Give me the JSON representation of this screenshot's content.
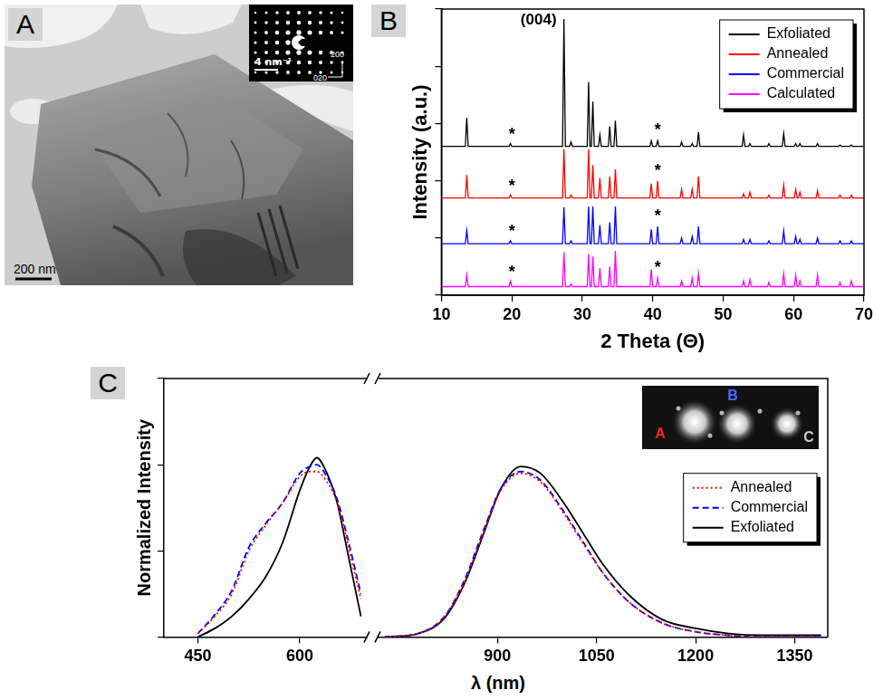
{
  "image_panel": {
    "panel": "A",
    "scale_bar": "200 nm",
    "inset": {
      "scale_bar": "4 nm⁻¹",
      "axis_labels": [
        "200",
        "020"
      ]
    }
  },
  "chart_data": [
    {
      "type": "line",
      "panel": "B",
      "xlabel": "2 Theta (Θ)",
      "ylabel": "Intensity (a.u.)",
      "xlim": [
        10,
        70
      ],
      "xticks": [
        10,
        20,
        30,
        40,
        50,
        60,
        70
      ],
      "ylim": [
        0,
        100
      ],
      "yticks": [
        0,
        20,
        40,
        60,
        80,
        100
      ],
      "tick_labels": "x",
      "grid": false,
      "legend": "upper right",
      "x": [
        10,
        13.4,
        13.6,
        13.8,
        19.6,
        19.8,
        20,
        27.2,
        27.4,
        27.6,
        28.2,
        28.4,
        28.6,
        30.7,
        30.9,
        31.1,
        31.3,
        31.5,
        31.7,
        32.3,
        32.5,
        32.7,
        33.7,
        33.9,
        34.1,
        34.5,
        34.7,
        34.9,
        39.6,
        39.8,
        40,
        40.5,
        40.7,
        40.9,
        43.9,
        44.1,
        44.3,
        45.4,
        45.6,
        45.8,
        46.3,
        46.5,
        46.7,
        52.7,
        52.9,
        53.1,
        53.6,
        53.8,
        54,
        56.3,
        56.5,
        56.7,
        58.4,
        58.6,
        58.8,
        60.1,
        60.3,
        60.5,
        60.7,
        60.9,
        61.1,
        63.2,
        63.4,
        63.6,
        66.4,
        66.6,
        66.8,
        68,
        68.2,
        68.4,
        70
      ],
      "series": [
        {
          "name": "Exfoliated",
          "color": "#000000",
          "values": [
            52,
            52,
            62,
            52,
            52,
            53,
            52,
            52,
            96.5,
            52,
            52,
            53.5,
            52,
            52,
            74.5,
            52,
            52,
            67.6,
            52,
            52,
            56,
            52,
            52,
            59,
            52,
            52,
            61,
            52,
            52,
            54,
            52,
            52,
            54,
            52,
            52,
            53.5,
            52,
            52,
            53,
            52,
            52,
            57,
            52,
            52,
            56,
            52,
            52,
            53,
            52,
            52,
            53,
            52,
            52,
            56.5,
            52,
            52,
            53,
            52,
            52,
            53,
            52,
            52,
            53,
            52,
            52,
            52.5,
            52,
            52,
            52.5,
            52,
            52
          ]
        },
        {
          "name": "Annealed",
          "color": "#ff0000",
          "values": [
            34,
            34,
            42,
            34,
            34,
            35,
            34,
            34,
            51,
            34,
            34,
            35,
            34,
            34,
            51,
            34,
            34,
            45.5,
            34,
            34,
            41,
            34,
            34,
            41.5,
            34,
            34,
            44,
            34,
            34,
            39,
            34,
            34,
            40,
            34,
            34,
            37,
            34,
            34,
            37,
            34,
            34,
            41.5,
            34,
            34,
            35.5,
            34,
            34,
            36,
            34,
            34,
            35,
            34,
            34,
            38.5,
            34,
            34,
            37,
            34,
            34,
            36,
            34,
            34,
            36.5,
            34,
            34,
            35,
            34,
            34,
            35,
            34,
            34
          ]
        },
        {
          "name": "Commercial",
          "color": "#0000ff",
          "values": [
            18,
            18,
            22.6,
            18,
            18,
            19,
            18,
            18,
            30.8,
            18,
            18,
            19,
            18,
            18,
            31,
            18,
            18,
            31,
            18,
            18,
            24.5,
            18,
            18,
            25.5,
            18,
            18,
            31,
            18,
            18,
            23,
            18,
            18,
            24,
            18,
            18,
            20,
            18,
            18,
            20.5,
            18,
            18,
            24,
            18,
            18,
            19.5,
            18,
            18,
            19.5,
            18,
            18,
            19,
            18,
            18,
            22.5,
            18,
            18,
            20.5,
            18,
            18,
            19.5,
            18,
            18,
            20,
            18,
            18,
            19,
            18,
            18,
            19,
            18,
            18
          ]
        },
        {
          "name": "Calculated",
          "color": "#ff00ff",
          "values": [
            3,
            3,
            7,
            3,
            3,
            5,
            3,
            3,
            15,
            3,
            3,
            4,
            3,
            3,
            14.5,
            3,
            3,
            13.5,
            3,
            3,
            9.5,
            3,
            3,
            10,
            3,
            3,
            15.5,
            3,
            3,
            9,
            3,
            3,
            6,
            3,
            3,
            5,
            3,
            3,
            6,
            3,
            3,
            7.5,
            3,
            3,
            5,
            3,
            3,
            5.5,
            3,
            3,
            4.5,
            3,
            3,
            7.5,
            3,
            3,
            7,
            3,
            3,
            5,
            3,
            3,
            7,
            3,
            3,
            4.5,
            3,
            3,
            5,
            3,
            3
          ]
        }
      ],
      "annotations": [
        {
          "text": "(004)",
          "x": 23.8,
          "y": 96
        },
        {
          "text": "*",
          "x": 20,
          "y": 56
        },
        {
          "text": "*",
          "x": 40.7,
          "y": 57.5
        },
        {
          "text": "*",
          "x": 20,
          "y": 38
        },
        {
          "text": "*",
          "x": 40.7,
          "y": 43.5
        },
        {
          "text": "*",
          "x": 20,
          "y": 22
        },
        {
          "text": "*",
          "x": 40.7,
          "y": 27.5
        },
        {
          "text": "*",
          "x": 20,
          "y": 8
        },
        {
          "text": "*",
          "x": 40.7,
          "y": 9.5
        }
      ]
    },
    {
      "type": "line",
      "panel": "C",
      "xlabel": "λ (nm)",
      "ylabel": "Normalized Intensity",
      "ylim": [
        0,
        1.5
      ],
      "yticks": [
        0,
        0.5,
        1,
        1.5
      ],
      "tick_labels": "x",
      "grid": false,
      "legend": "right",
      "segments": [
        {
          "xlim": [
            400,
            700
          ],
          "xticks": [
            450,
            600
          ],
          "x": [
            450,
            475,
            500,
            525,
            550,
            575,
            600,
            615,
            625,
            640,
            655,
            670,
            690
          ],
          "series": [
            {
              "name": "Annealed",
              "color": "#ff0000",
              "line_style": "dotted",
              "values": [
                0.02,
                0.12,
                0.25,
                0.5,
                0.65,
                0.78,
                0.93,
                0.96,
                0.96,
                0.9,
                0.78,
                0.55,
                0.22
              ]
            },
            {
              "name": "Commercial",
              "color": "#0000ff",
              "line_style": "dashed",
              "values": [
                0.02,
                0.13,
                0.27,
                0.52,
                0.66,
                0.78,
                0.95,
                0.99,
                1,
                0.93,
                0.8,
                0.58,
                0.25
              ]
            },
            {
              "name": "Exfoliated",
              "color": "#000000",
              "line_style": "solid",
              "values": [
                0,
                0.05,
                0.12,
                0.22,
                0.35,
                0.55,
                0.85,
                0.99,
                1.04,
                0.95,
                0.78,
                0.5,
                0.12
              ]
            }
          ]
        },
        {
          "xlim": [
            720,
            1400
          ],
          "xticks": [
            900,
            1050,
            1200,
            1350
          ],
          "x": [
            730,
            780,
            820,
            850,
            880,
            905,
            935,
            965,
            1000,
            1030,
            1060,
            1100,
            1150,
            1200,
            1250,
            1300,
            1390
          ],
          "series": [
            {
              "name": "Annealed",
              "color": "#ff0000",
              "line_style": "dotted",
              "values": [
                0,
                0.02,
                0.12,
                0.32,
                0.62,
                0.85,
                0.95,
                0.9,
                0.72,
                0.54,
                0.37,
                0.2,
                0.08,
                0.03,
                0.01,
                0,
                0
              ]
            },
            {
              "name": "Commercial",
              "color": "#0000ff",
              "line_style": "dashed",
              "values": [
                0,
                0.02,
                0.12,
                0.33,
                0.63,
                0.86,
                0.96,
                0.91,
                0.73,
                0.55,
                0.37,
                0.2,
                0.08,
                0.03,
                0.01,
                0,
                0
              ]
            },
            {
              "name": "Exfoliated",
              "color": "#000000",
              "line_style": "solid",
              "values": [
                0,
                0.02,
                0.11,
                0.31,
                0.61,
                0.86,
                0.99,
                0.95,
                0.78,
                0.6,
                0.42,
                0.24,
                0.1,
                0.05,
                0.02,
                0.01,
                0.01
              ]
            }
          ]
        }
      ],
      "inset": {
        "labels": [
          {
            "text": "A",
            "color": "#ff2020"
          },
          {
            "text": "B",
            "color": "#4a66ff"
          },
          {
            "text": "C",
            "color": "#c8c8c8"
          }
        ]
      }
    }
  ]
}
